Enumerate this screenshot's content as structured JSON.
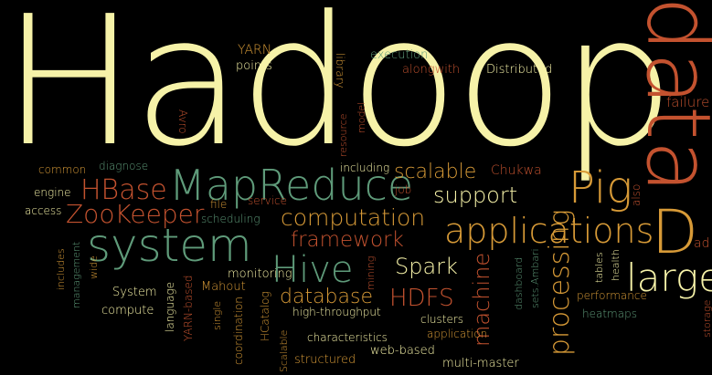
{
  "words": {
    "hadoop": "Hadoop",
    "data": "data",
    "d": "D",
    "ad": "ad",
    "large": "large",
    "applications": "applications",
    "pig": "Pig",
    "mapreduce": "MapReduce",
    "system": "system",
    "hive": "Hive",
    "hbase": "HBase",
    "zookeeper": "ZooKeeper",
    "computation": "computation",
    "framework": "framework",
    "support": "support",
    "scalable": "scalable",
    "spark": "Spark",
    "database": "database",
    "hdfs": "HDFS",
    "processing": "processing",
    "machine": "machine",
    "yarn": "YARN",
    "points": "points",
    "execution": "execution",
    "alongwith": "alongwith",
    "distributed": "Distributed",
    "library": "library",
    "resource": "resource",
    "model": "model",
    "avro": "Avro",
    "failure": "failure",
    "common": "common",
    "diagnose": "diagnose",
    "including": "including",
    "chukwa": "Chukwa",
    "engine": "engine",
    "file": "file",
    "service": "service",
    "job": "job",
    "access": "access",
    "scheduling": "scheduling",
    "also": "also",
    "includes": "includes",
    "management": "management",
    "wide": "wide",
    "system_small": "System",
    "language": "language",
    "yarn_based": "YARN-based",
    "mahout": "Mahout",
    "hcatalog": "HCatalog",
    "monitoring": "monitoring",
    "mining": "mining",
    "dashboard": "dashboard",
    "sets_ambari": "sets.Ambari",
    "tables": "tables",
    "health": "health",
    "performance": "performance",
    "storage": "storage",
    "compute": "compute",
    "single": "single",
    "coordination": "coordination",
    "high_throughput": "high-throughput",
    "clusters": "clusters",
    "application": "application",
    "heatmaps": "heatmaps",
    "characteristics": "characteristics",
    "web_based": "web-based",
    "scalable_small": "Scalable",
    "structured": "structured",
    "multi_master": "multi-master"
  },
  "colors": {
    "background": "#000000",
    "pale_yellow": "#f6f2a8",
    "rust": "#c3522f",
    "orange_gold": "#d79a37",
    "teal_green": "#5f9b7a",
    "brick_red": "#b84b37"
  }
}
